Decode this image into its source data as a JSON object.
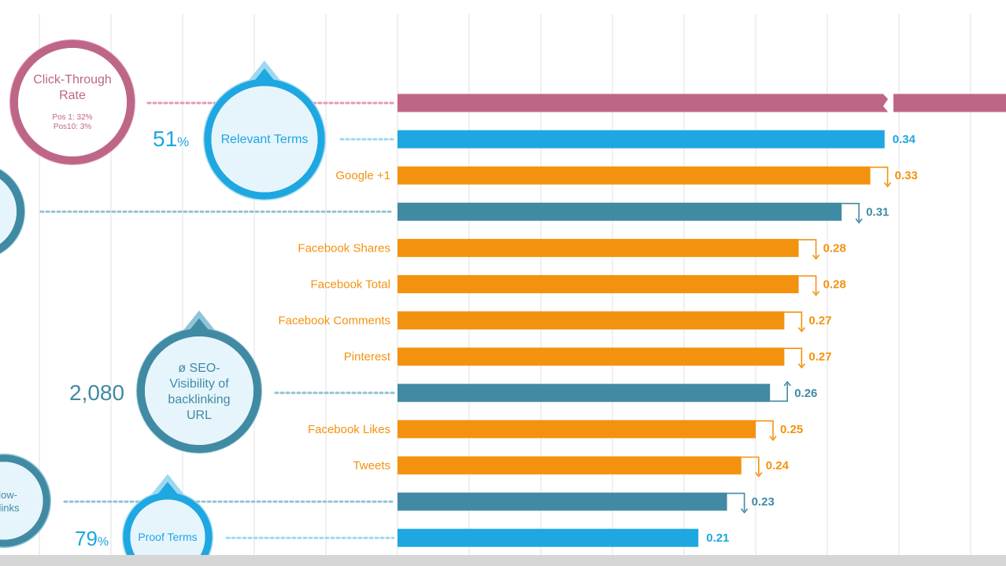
{
  "colors": {
    "pink": "#be6688",
    "pink_light": "#e49ab4",
    "blue": "#1ea7e0",
    "blue_light": "#9dd8f2",
    "teal": "#418aa3",
    "teal_light": "#8fc4d6",
    "orange": "#f3920f",
    "grid": "#e6e6e6"
  },
  "chart_data": {
    "type": "bar",
    "orientation": "horizontal",
    "grid": true,
    "bars": [
      {
        "label": "",
        "value": null,
        "color": "pink",
        "value_label": "",
        "arrow": "none",
        "truncated": true
      },
      {
        "label": "",
        "value": 0.34,
        "color": "blue",
        "value_label": "0.34",
        "arrow": "none"
      },
      {
        "label": "Google +1",
        "value": 0.33,
        "color": "orange",
        "value_label": "0.33",
        "arrow": "down"
      },
      {
        "label": "",
        "value": 0.31,
        "color": "teal",
        "value_label": "0.31",
        "arrow": "down"
      },
      {
        "label": "Facebook Shares",
        "value": 0.28,
        "color": "orange",
        "value_label": "0.28",
        "arrow": "down"
      },
      {
        "label": "Facebook Total",
        "value": 0.28,
        "color": "orange",
        "value_label": "0.28",
        "arrow": "down"
      },
      {
        "label": "Facebook Comments",
        "value": 0.27,
        "color": "orange",
        "value_label": "0.27",
        "arrow": "down"
      },
      {
        "label": "Pinterest",
        "value": 0.27,
        "color": "orange",
        "value_label": "0.27",
        "arrow": "down"
      },
      {
        "label": "",
        "value": 0.26,
        "color": "teal",
        "value_label": "0.26",
        "arrow": "up"
      },
      {
        "label": "Facebook Likes",
        "value": 0.25,
        "color": "orange",
        "value_label": "0.25",
        "arrow": "down"
      },
      {
        "label": "Tweets",
        "value": 0.24,
        "color": "orange",
        "value_label": "0.24",
        "arrow": "down"
      },
      {
        "label": "",
        "value": 0.23,
        "color": "teal",
        "value_label": "0.23",
        "arrow": "down"
      },
      {
        "label": "",
        "value": 0.21,
        "color": "blue",
        "value_label": "0.21",
        "arrow": "none"
      }
    ]
  },
  "bubbles": [
    {
      "id": "click-through-rate",
      "row": 0,
      "color": "pink",
      "lines": [
        "Click-Through",
        "Rate"
      ],
      "sublines": [
        "Pos 1: 32%",
        "Pos10: 3%"
      ],
      "stat": "",
      "pin": false
    },
    {
      "id": "relevant-terms",
      "row": 1,
      "color": "blue",
      "lines": [
        "Relevant Terms"
      ],
      "sublines": [],
      "stat": "51",
      "stat_unit": "%",
      "pin": true
    },
    {
      "id": "partial-teal",
      "row": 3,
      "color": "teal",
      "lines": [],
      "sublines": [],
      "stat": "",
      "pin": false
    },
    {
      "id": "seo-visibility",
      "row": 8,
      "color": "teal",
      "lines": [
        "ø SEO-",
        "Visibility of",
        "backlinking",
        "URL"
      ],
      "sublines": [],
      "stat": "2,080",
      "stat_unit": "",
      "pin": true
    },
    {
      "id": "follow-backlinks",
      "row": 11,
      "color": "teal",
      "lines": [
        "ollow-",
        "cklinks"
      ],
      "sublines": [],
      "stat": "",
      "pin": false
    },
    {
      "id": "proof-terms",
      "row": 12,
      "color": "blue",
      "lines": [
        "Proof Terms"
      ],
      "sublines": [],
      "stat": "79",
      "stat_unit": "%",
      "pin": true
    }
  ]
}
